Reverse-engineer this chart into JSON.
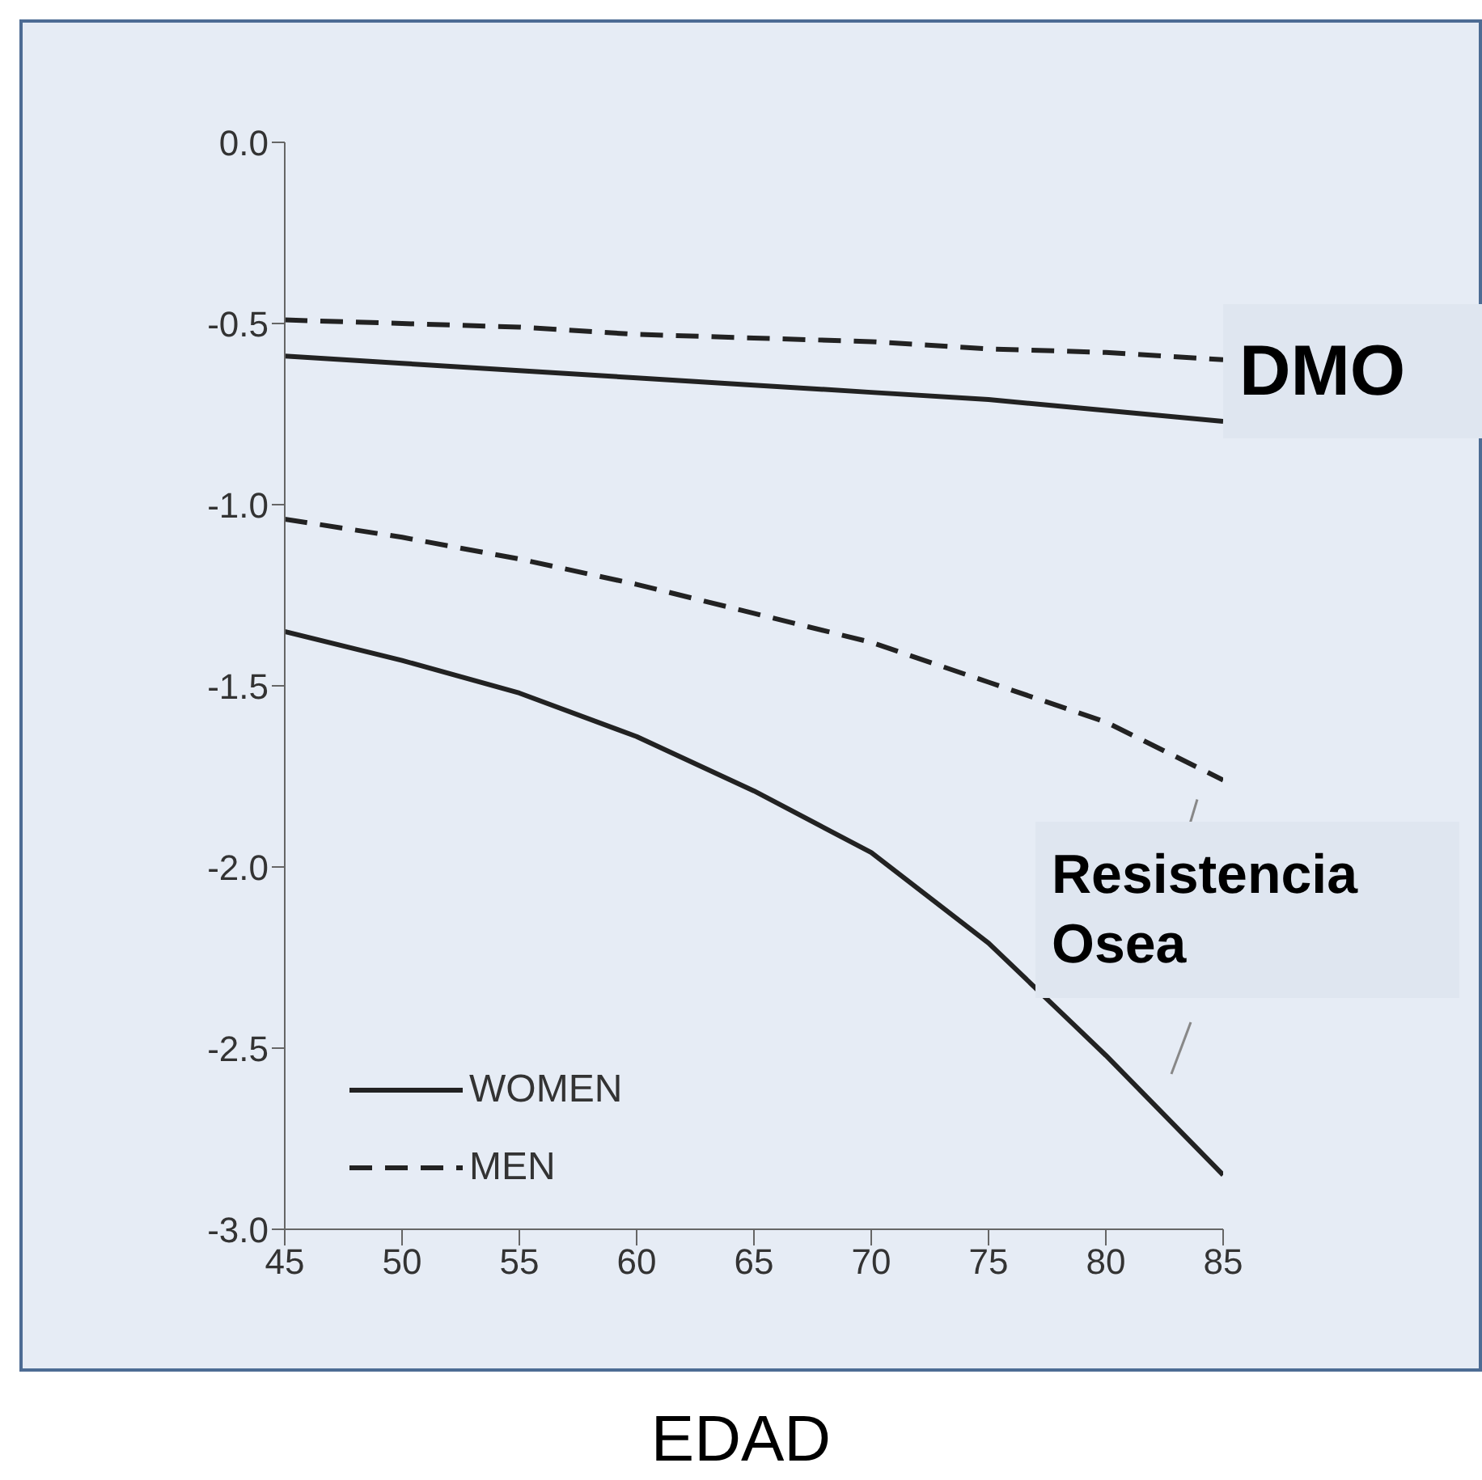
{
  "chart_data": {
    "type": "line",
    "xlabel": "EDAD",
    "x": [
      45,
      50,
      55,
      60,
      65,
      70,
      75,
      80,
      85
    ],
    "series": [
      {
        "name": "WOMEN",
        "color": "#222222",
        "line_style": "solid",
        "values": [
          -0.59,
          -0.61,
          -0.63,
          -0.65,
          -0.67,
          -0.69,
          -0.71,
          -0.74,
          -0.77
        ]
      },
      {
        "name": "MEN",
        "color": "#222222",
        "line_style": "dashed",
        "values": [
          -0.49,
          -0.5,
          -0.51,
          -0.53,
          -0.54,
          -0.55,
          -0.57,
          -0.58,
          -0.6
        ]
      },
      {
        "color": "#222222",
        "line_style": "solid",
        "values": [
          -1.35,
          -1.43,
          -1.52,
          -1.64,
          -1.79,
          -1.96,
          -2.21,
          -2.52,
          -2.85
        ]
      },
      {
        "color": "#222222",
        "line_style": "dashed",
        "values": [
          -1.04,
          -1.09,
          -1.15,
          -1.22,
          -1.3,
          -1.38,
          -1.49,
          -1.6,
          -1.76
        ]
      }
    ],
    "xlim": [
      45,
      85
    ],
    "xticks": [
      45,
      50,
      55,
      60,
      65,
      70,
      75,
      80,
      85
    ],
    "ylim": [
      -3,
      0
    ],
    "yticks": [
      {
        "value": -3,
        "label": "-3.0"
      },
      {
        "value": -2.5,
        "label": "-2.5"
      },
      {
        "value": -2,
        "label": "-2.0"
      },
      {
        "value": -1.5,
        "label": "-1.5"
      },
      {
        "value": -1,
        "label": "-1.0"
      },
      {
        "value": -0.5,
        "label": "-0.5"
      },
      {
        "value": 0,
        "label": "0.0"
      }
    ],
    "legend": "bottom left",
    "grid": false,
    "marker": "none",
    "annotations": [
      "DMO",
      "Resistencia Osea"
    ]
  }
}
